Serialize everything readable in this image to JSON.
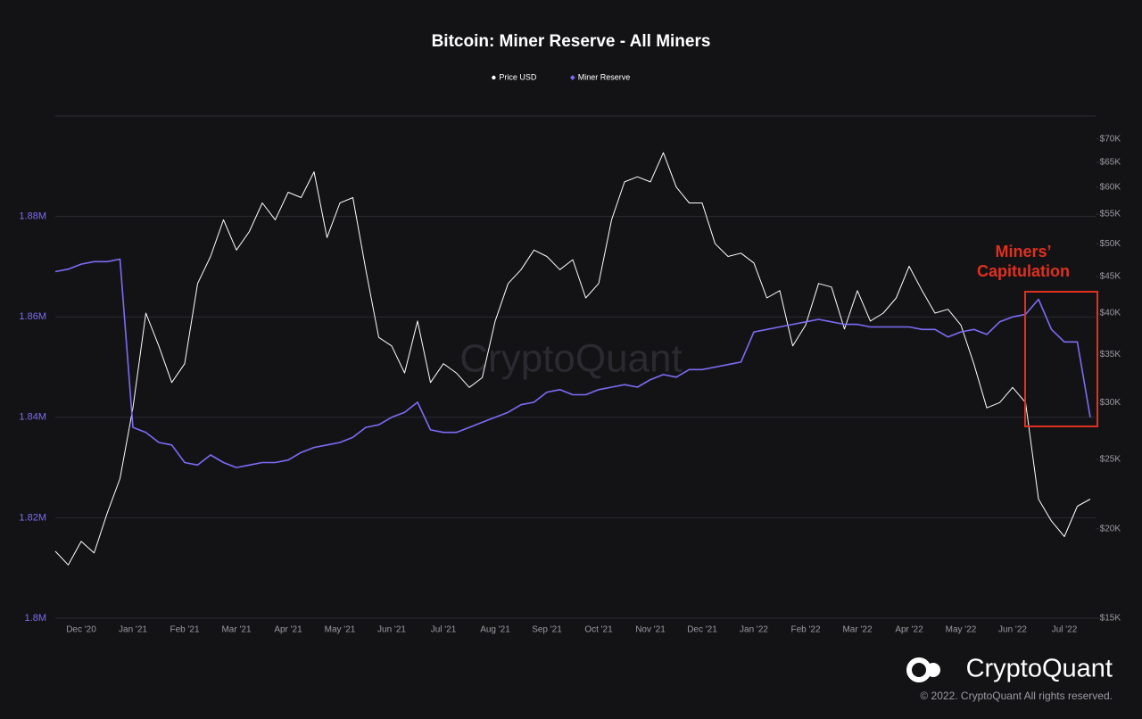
{
  "chart_data": {
    "type": "line",
    "title": "Bitcoin: Miner Reserve - All Miners",
    "watermark": "CryptoQuant",
    "brand": "CryptoQuant",
    "footer": "© 2022. CryptoQuant All rights reserved.",
    "annotation": [
      "Miners’",
      "Capitulation"
    ],
    "x": [
      null,
      null,
      "Dec '20",
      null,
      null,
      null,
      "Jan '21",
      null,
      null,
      null,
      "Feb '21",
      null,
      null,
      null,
      "Mar '21",
      null,
      null,
      null,
      "Apr '21",
      null,
      null,
      null,
      "May '21",
      null,
      null,
      null,
      "Jun '21",
      null,
      null,
      null,
      "Jul '21",
      null,
      null,
      null,
      "Aug '21",
      null,
      null,
      null,
      "Sep '21",
      null,
      null,
      null,
      "Oct '21",
      null,
      null,
      null,
      "Nov '21",
      null,
      null,
      null,
      "Dec '21",
      null,
      null,
      null,
      "Jan '22",
      null,
      null,
      null,
      "Feb '22",
      null,
      null,
      null,
      "Mar '22",
      null,
      null,
      null,
      "Apr '22",
      null,
      null,
      null,
      "May '22",
      null,
      null,
      null,
      "Jun '22",
      null,
      null,
      null,
      "Jul '22",
      null,
      null
    ],
    "ylim": [
      1800000,
      1900000
    ],
    "yticks": [
      {
        "value": 1800000,
        "label": "1.8M"
      },
      {
        "value": 1820000,
        "label": "1.82M"
      },
      {
        "value": 1840000,
        "label": "1.84M"
      },
      {
        "value": 1860000,
        "label": "1.86M"
      },
      {
        "value": 1880000,
        "label": "1.88M"
      }
    ],
    "y2lim": [
      15000,
      75400
    ],
    "y2log": true,
    "y2ticks": [
      {
        "value": 15000,
        "label": "$15K"
      },
      {
        "value": 20000,
        "label": "$20K"
      },
      {
        "value": 25000,
        "label": "$25K"
      },
      {
        "value": 30000,
        "label": "$30K"
      },
      {
        "value": 35000,
        "label": "$35K"
      },
      {
        "value": 40000,
        "label": "$40K"
      },
      {
        "value": 45000,
        "label": "$45K"
      },
      {
        "value": 50000,
        "label": "$50K"
      },
      {
        "value": 55000,
        "label": "$55K"
      },
      {
        "value": 60000,
        "label": "$60K"
      },
      {
        "value": 65000,
        "label": "$65K"
      },
      {
        "value": 70000,
        "label": "$70K"
      }
    ],
    "grid": true,
    "legend": "top",
    "series": [
      {
        "name": "Price USD",
        "color": "#ffffff",
        "axis": "y2",
        "marker": "circle",
        "values": [
          18600,
          17800,
          19200,
          18500,
          21000,
          23500,
          29500,
          40000,
          36000,
          32000,
          34000,
          44000,
          48000,
          54000,
          49000,
          52000,
          57000,
          54000,
          59000,
          58000,
          63000,
          51000,
          57000,
          58000,
          46000,
          37000,
          36000,
          33000,
          39000,
          32000,
          34000,
          33000,
          31500,
          32500,
          39000,
          44000,
          46000,
          49000,
          48000,
          46000,
          47500,
          42000,
          44000,
          54000,
          61000,
          62000,
          61000,
          67000,
          60000,
          57000,
          57000,
          50000,
          48000,
          48500,
          47000,
          42000,
          43000,
          36000,
          38500,
          44000,
          43500,
          38000,
          43000,
          39000,
          40000,
          42000,
          46500,
          43000,
          40000,
          40500,
          38500,
          34000,
          29500,
          30000,
          31500,
          30000,
          22000,
          20500,
          19500,
          21500,
          22000
        ]
      },
      {
        "name": "Miner Reserve",
        "color": "#7b6cf6",
        "marker": "diamond",
        "values": [
          1869000,
          1869500,
          1870500,
          1871000,
          1871000,
          1871500,
          1838000,
          1837000,
          1835000,
          1834500,
          1831000,
          1830500,
          1832500,
          1831000,
          1830000,
          1830500,
          1831000,
          1831000,
          1831500,
          1833000,
          1834000,
          1834500,
          1835000,
          1836000,
          1838000,
          1838500,
          1840000,
          1841000,
          1843000,
          1837500,
          1837000,
          1837000,
          1838000,
          1839000,
          1840000,
          1841000,
          1842500,
          1843000,
          1845000,
          1845500,
          1844500,
          1844500,
          1845500,
          1846000,
          1846500,
          1846000,
          1847500,
          1848500,
          1848000,
          1849500,
          1849500,
          1850000,
          1850500,
          1851000,
          1857000,
          1857500,
          1858000,
          1858500,
          1859000,
          1859500,
          1859000,
          1858500,
          1858500,
          1858000,
          1858000,
          1858000,
          1858000,
          1857500,
          1857500,
          1856000,
          1857000,
          1857500,
          1856500,
          1859000,
          1860000,
          1860500,
          1863500,
          1857500,
          1855000,
          1855000,
          1840000
        ]
      }
    ]
  }
}
